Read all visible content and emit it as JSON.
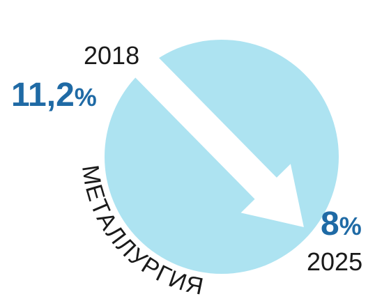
{
  "start": {
    "year": "2018",
    "number": "11,2",
    "unit": "%"
  },
  "end": {
    "year": "2025",
    "number": "8",
    "unit": "%"
  },
  "label": "МЕТАЛЛУРГИЯ"
}
